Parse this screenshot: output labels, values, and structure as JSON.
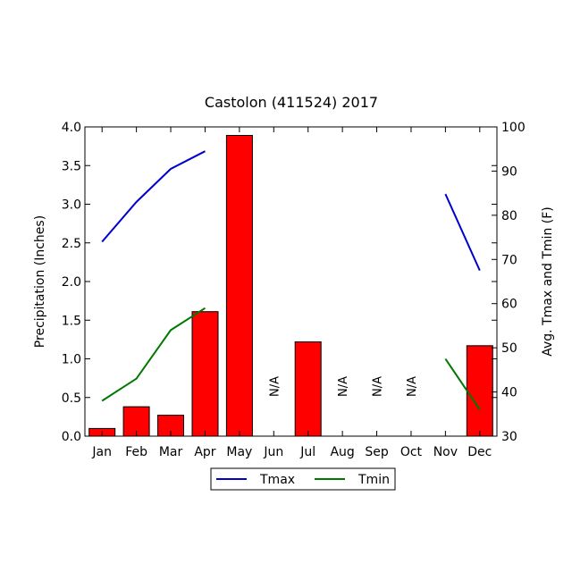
{
  "chart_data": {
    "type": "bar",
    "title": "Castolon (411524) 2017",
    "categories": [
      "Jan",
      "Feb",
      "Mar",
      "Apr",
      "May",
      "Jun",
      "Jul",
      "Aug",
      "Sep",
      "Oct",
      "Nov",
      "Dec"
    ],
    "ylabel": "Precipitation (Inches)",
    "ylim": [
      0,
      4.0
    ],
    "yticks": [
      "0.0",
      "0.5",
      "1.0",
      "1.5",
      "2.0",
      "2.5",
      "3.0",
      "3.5",
      "4.0"
    ],
    "y2label": "Avg. Tmax and Tmin (F)",
    "y2lim": [
      30,
      100
    ],
    "y2ticks": [
      "30",
      "40",
      "50",
      "60",
      "70",
      "80",
      "90",
      "100"
    ],
    "bar_color": "#ff0000",
    "precipitation": [
      0.1,
      0.38,
      0.27,
      1.61,
      3.89,
      null,
      1.22,
      null,
      null,
      null,
      0.0,
      1.17
    ],
    "na_label": "N/A",
    "na_months": [
      "Jun",
      "Aug",
      "Sep",
      "Oct"
    ],
    "series": [
      {
        "name": "Tmax",
        "color": "#0000cc",
        "values": [
          74,
          83,
          90.5,
          94.5,
          null,
          null,
          null,
          null,
          null,
          null,
          84.8,
          67.5
        ]
      },
      {
        "name": "Tmin",
        "color": "#007700",
        "values": [
          38,
          43,
          54,
          59,
          null,
          null,
          null,
          null,
          null,
          null,
          47.5,
          36
        ]
      }
    ],
    "legend_position": "bottom-center",
    "grid": false
  }
}
